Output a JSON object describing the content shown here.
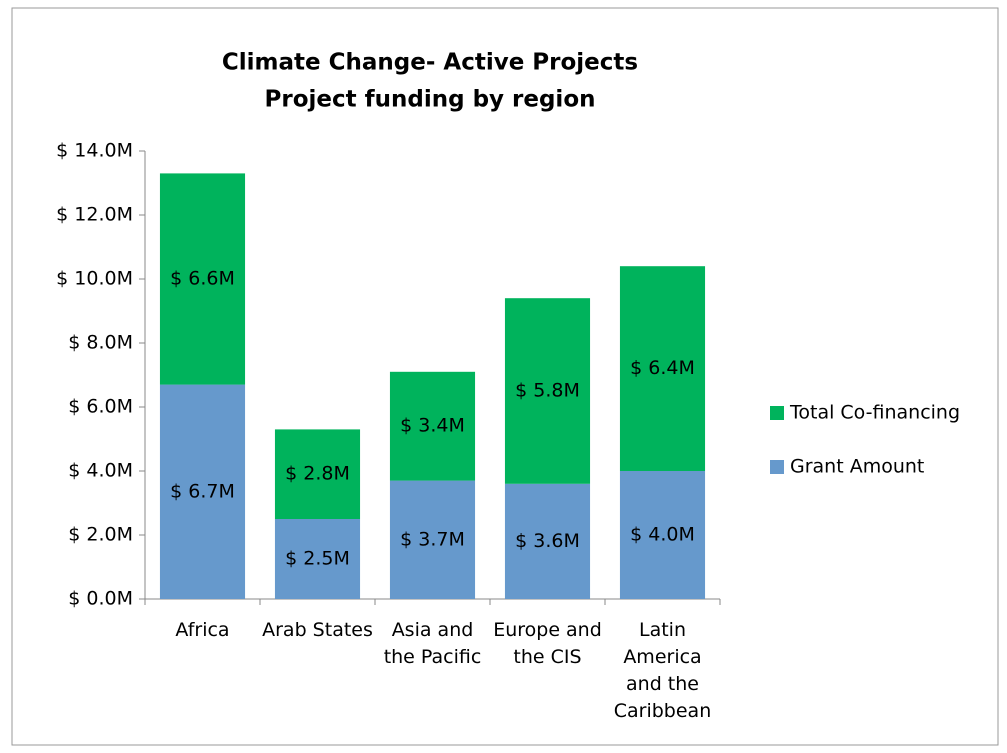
{
  "chart_data": {
    "type": "stacked_bar",
    "title": "Climate Change- Active Projects",
    "subtitle": "Project funding by region",
    "categories": [
      "Africa",
      "Arab States",
      "Asia and the Pacific",
      "Europe and the CIS",
      "Latin America and the Caribbean"
    ],
    "series": [
      {
        "name": "Grant Amount",
        "color": "#6699cc",
        "values": [
          6.7,
          2.5,
          3.7,
          3.6,
          4.0
        ],
        "value_labels": [
          "$ 6.7M",
          "$ 2.5M",
          "$ 3.7M",
          "$ 3.6M",
          "$ 4.0M"
        ]
      },
      {
        "name": "Total Co-financing",
        "color": "#00b35c",
        "values": [
          6.6,
          2.8,
          3.4,
          5.8,
          6.4
        ],
        "value_labels": [
          "$ 6.6M",
          "$ 2.8M",
          "$ 3.4M",
          "$ 5.8M",
          "$ 6.4M"
        ]
      }
    ],
    "ylim": [
      0,
      14
    ],
    "yticks": [
      {
        "value": 0,
        "label": "$ 0.0M"
      },
      {
        "value": 2,
        "label": "$ 2.0M"
      },
      {
        "value": 4,
        "label": "$ 4.0M"
      },
      {
        "value": 6,
        "label": "$ 6.0M"
      },
      {
        "value": 8,
        "label": "$ 8.0M"
      },
      {
        "value": 10,
        "label": "$ 10.0M"
      },
      {
        "value": 12,
        "label": "$ 12.0M"
      },
      {
        "value": 14,
        "label": "$ 14.0M"
      }
    ],
    "grid": false,
    "legend": "right"
  }
}
